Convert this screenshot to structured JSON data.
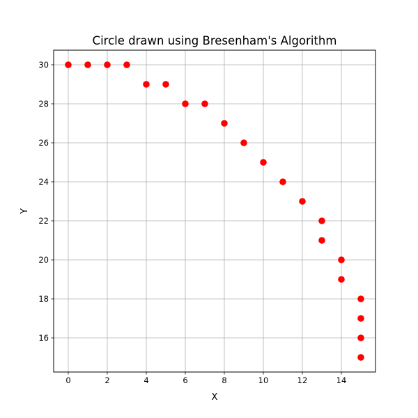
{
  "chart_data": {
    "type": "scatter",
    "title": "Circle drawn using Bresenham's Algorithm",
    "xlabel": "X",
    "ylabel": "Y",
    "xlim": [
      -0.75,
      15.75
    ],
    "ylim": [
      14.25,
      30.75
    ],
    "xticks": [
      0,
      2,
      4,
      6,
      8,
      10,
      12,
      14
    ],
    "yticks": [
      16,
      18,
      20,
      22,
      24,
      26,
      28,
      30
    ],
    "grid": true,
    "marker_color": "#ff0000",
    "points": [
      {
        "x": 0,
        "y": 30
      },
      {
        "x": 1,
        "y": 30
      },
      {
        "x": 2,
        "y": 30
      },
      {
        "x": 3,
        "y": 30
      },
      {
        "x": 4,
        "y": 29
      },
      {
        "x": 5,
        "y": 29
      },
      {
        "x": 6,
        "y": 28
      },
      {
        "x": 7,
        "y": 28
      },
      {
        "x": 8,
        "y": 27
      },
      {
        "x": 9,
        "y": 26
      },
      {
        "x": 10,
        "y": 25
      },
      {
        "x": 11,
        "y": 24
      },
      {
        "x": 12,
        "y": 23
      },
      {
        "x": 13,
        "y": 22
      },
      {
        "x": 13,
        "y": 21
      },
      {
        "x": 14,
        "y": 20
      },
      {
        "x": 14,
        "y": 19
      },
      {
        "x": 15,
        "y": 18
      },
      {
        "x": 15,
        "y": 17
      },
      {
        "x": 15,
        "y": 16
      },
      {
        "x": 15,
        "y": 15
      }
    ]
  }
}
